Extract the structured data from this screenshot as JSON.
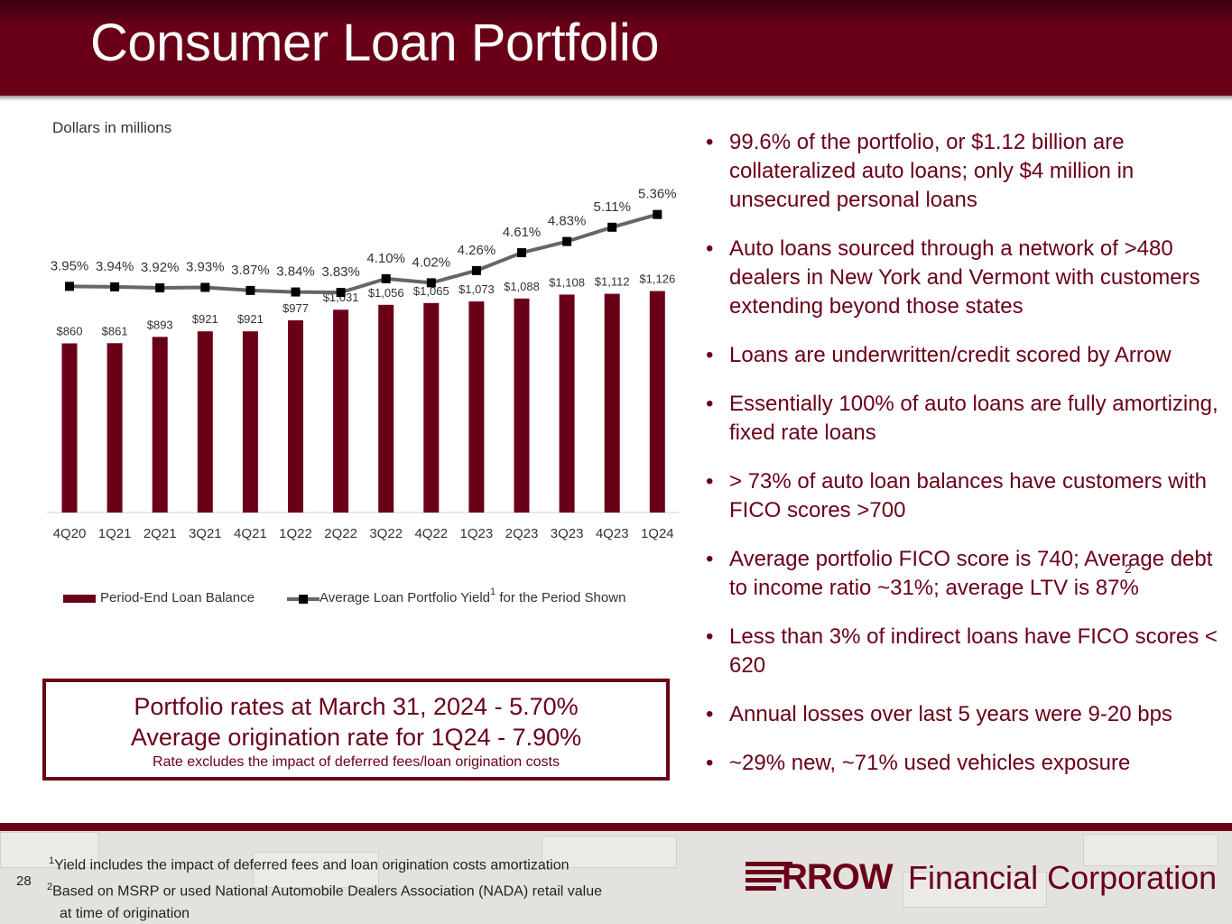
{
  "title": "Consumer Loan Portfolio",
  "units_label": "Dollars in millions",
  "colors": {
    "brand": "#6a0018",
    "line": "#666666",
    "marker": "#000000"
  },
  "chart_data": {
    "type": "bar",
    "categories": [
      "4Q20",
      "1Q21",
      "2Q21",
      "3Q21",
      "4Q21",
      "1Q22",
      "2Q22",
      "3Q22",
      "4Q22",
      "1Q23",
      "2Q23",
      "3Q23",
      "4Q23",
      "1Q24"
    ],
    "series": [
      {
        "name": "Period-End Loan Balance",
        "type": "bar",
        "values": [
          860,
          861,
          893,
          921,
          921,
          977,
          1031,
          1056,
          1065,
          1073,
          1088,
          1108,
          1112,
          1126
        ],
        "labels": [
          "$860",
          "$861",
          "$893",
          "$921",
          "$921",
          "$977",
          "$1,031",
          "$1,056",
          "$1,065",
          "$1,073",
          "$1,088",
          "$1,108",
          "$1,112",
          "$1,126"
        ]
      },
      {
        "name": "Average Loan Portfolio Yield for the Period Shown",
        "type": "line",
        "values": [
          3.95,
          3.94,
          3.92,
          3.93,
          3.87,
          3.84,
          3.83,
          4.1,
          4.02,
          4.26,
          4.61,
          4.83,
          5.11,
          5.36
        ],
        "labels": [
          "3.95%",
          "3.94%",
          "3.92%",
          "3.93%",
          "3.87%",
          "3.84%",
          "3.83%",
          "4.10%",
          "4.02%",
          "4.26%",
          "4.61%",
          "4.83%",
          "5.11%",
          "5.36%"
        ]
      }
    ],
    "legend": {
      "bar_label": "Period-End Loan Balance",
      "line_label_pre": "Average Loan Portfolio Yield",
      "line_label_sup": "1",
      "line_label_post": " for the Period Shown",
      "position": "bottom"
    },
    "grid": false
  },
  "callout": {
    "line1": "Portfolio rates at March 31, 2024 - 5.70%",
    "line2": "Average origination rate for 1Q24 - 7.90%",
    "line3": "Rate excludes the impact of deferred fees/loan origination costs"
  },
  "bullets": [
    "99.6% of the portfolio, or $1.12 billion are collateralized auto loans; only $4 million in unsecured personal loans",
    "Auto loans sourced through a network of >480 dealers in New York and Vermont with customers extending beyond those states",
    "Loans are underwritten/credit scored by Arrow",
    "Essentially 100% of auto loans are fully amortizing, fixed rate loans",
    "> 73% of auto loan balances have customers with FICO scores >700",
    "Average portfolio FICO score is 740; Average debt to income ratio ~31%; average LTV is 87%",
    "Less than 3% of indirect loans have FICO scores < 620",
    "Annual losses over last 5 years were 9-20 bps",
    "~29% new, ~71% used vehicles exposure"
  ],
  "bullet_glyph": "•",
  "ltv_sup": "2",
  "footer": {
    "page_number": "28",
    "footnote1_sup": "1",
    "footnote1": "Yield includes the impact of deferred fees and loan origination costs amortization",
    "footnote2_sup": "2",
    "footnote2_line1": "Based on MSRP or used National Automobile Dealers Association (NADA) retail value",
    "footnote2_line2": "at time of origination"
  },
  "logo": {
    "brand": "RROW",
    "text": "Financial Corporation"
  }
}
